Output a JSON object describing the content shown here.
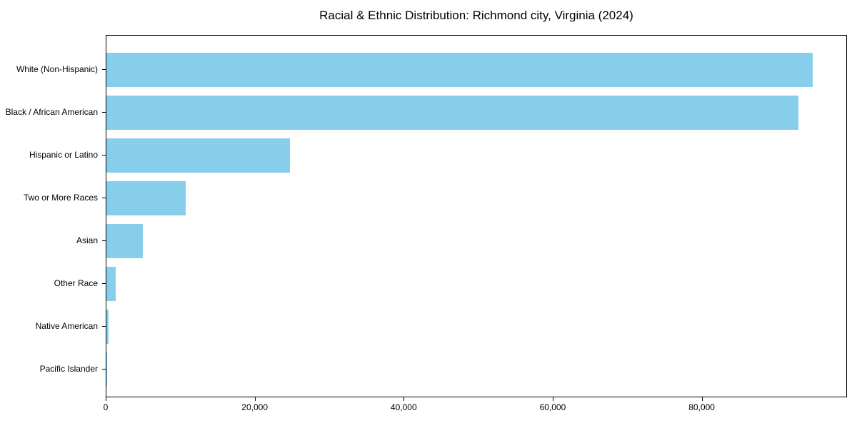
{
  "chart_data": {
    "type": "bar",
    "orientation": "horizontal",
    "title": "Racial & Ethnic Distribution: Richmond city, Virginia (2024)",
    "categories": [
      "White (Non-Hispanic)",
      "Black / African American",
      "Hispanic or Latino",
      "Two or More Races",
      "Asian",
      "Other Race",
      "Native American",
      "Pacific Islander"
    ],
    "values": [
      94800,
      92900,
      24650,
      10650,
      4900,
      1250,
      300,
      70
    ],
    "bar_color": "#87CEEB",
    "background_color": "#ffffff",
    "axis_color": "#000000",
    "text_color": "#000000",
    "xlabel": "",
    "ylabel": "",
    "xlim": [
      0,
      99500
    ],
    "xticks": [
      0,
      20000,
      40000,
      60000,
      80000
    ],
    "xtick_labels": [
      "0",
      "20,000",
      "40,000",
      "60,000",
      "80,000"
    ],
    "grid": false,
    "legend": null
  }
}
